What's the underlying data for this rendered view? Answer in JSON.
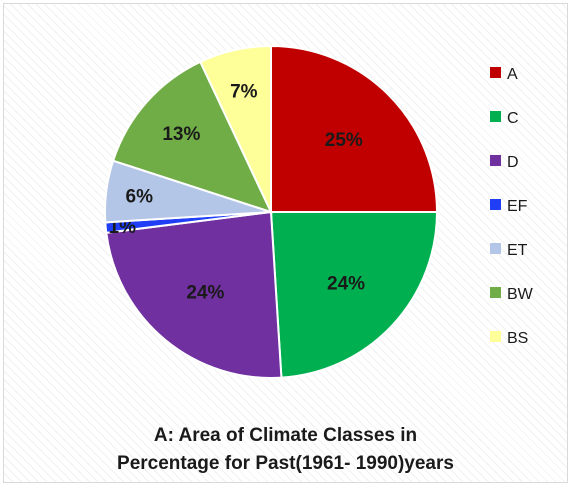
{
  "chart_data": {
    "type": "pie",
    "title_lines": [
      "A: Area of Climate Classes in",
      "Percentage for Past(1961- 1990)years"
    ],
    "legend_position": "right",
    "slices": [
      {
        "name": "A",
        "value": 25,
        "label": "25%",
        "color": "#c00000"
      },
      {
        "name": "C",
        "value": 24,
        "label": "24%",
        "color": "#00b050"
      },
      {
        "name": "D",
        "value": 24,
        "label": "24%",
        "color": "#7030a0"
      },
      {
        "name": "EF",
        "value": 1,
        "label": "1%",
        "color": "#1f3ef5"
      },
      {
        "name": "ET",
        "value": 6,
        "label": "6%",
        "color": "#b4c6e7"
      },
      {
        "name": "BW",
        "value": 13,
        "label": "13%",
        "color": "#70ad47"
      },
      {
        "name": "BS",
        "value": 7,
        "label": "7%",
        "color": "#ffff99"
      }
    ]
  }
}
